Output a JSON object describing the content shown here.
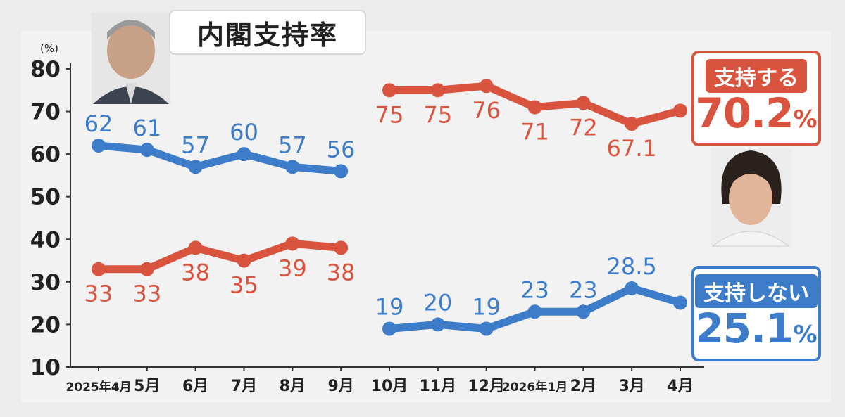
{
  "title": "内閣支持率",
  "chart_data": {
    "type": "line",
    "unit_label": "(%)",
    "ylim": [
      10,
      80
    ],
    "yticks": [
      10,
      20,
      30,
      40,
      50,
      60,
      70,
      80
    ],
    "categories": [
      {
        "main": "2025年4月"
      },
      {
        "main": "5月"
      },
      {
        "main": "6月"
      },
      {
        "main": "7月"
      },
      {
        "main": "8月"
      },
      {
        "main": "9月"
      },
      {
        "main": "10月"
      },
      {
        "main": "11月"
      },
      {
        "main": "12月"
      },
      {
        "main": "2026年1月"
      },
      {
        "main": "2月"
      },
      {
        "main": "3月"
      },
      {
        "main": "4月"
      }
    ],
    "series": [
      {
        "name": "支持する",
        "color": "#d9543f",
        "segment": "early",
        "values": [
          33,
          33,
          38,
          35,
          39,
          38,
          null,
          null,
          null,
          null,
          null,
          null,
          null
        ],
        "labels": [
          "33",
          "33",
          "38",
          "35",
          "39",
          "38"
        ]
      },
      {
        "name": "支持しない",
        "color": "#3c7cc9",
        "segment": "early",
        "values": [
          62,
          61,
          57,
          60,
          57,
          56,
          null,
          null,
          null,
          null,
          null,
          null,
          null
        ],
        "labels": [
          "62",
          "61",
          "57",
          "60",
          "57",
          "56"
        ]
      },
      {
        "name": "支持する",
        "color": "#d9543f",
        "segment": "late",
        "values": [
          null,
          null,
          null,
          null,
          null,
          null,
          75,
          75,
          76,
          71,
          72,
          67.1,
          70.2
        ],
        "labels": [
          "75",
          "75",
          "76",
          "71",
          "72",
          "67.1"
        ]
      },
      {
        "name": "支持しない",
        "color": "#3c7cc9",
        "segment": "late",
        "values": [
          null,
          null,
          null,
          null,
          null,
          null,
          19,
          20,
          19,
          23,
          23,
          28.5,
          25.1
        ],
        "labels": [
          "19",
          "20",
          "19",
          "23",
          "23",
          "28.5"
        ]
      }
    ]
  },
  "callouts": {
    "support": {
      "label": "支持する",
      "value": "70.2",
      "pct": "%"
    },
    "nonsupport": {
      "label": "支持しない",
      "value": "25.1",
      "pct": "%"
    }
  },
  "icons": {
    "left_photo": "person-photo-icon",
    "right_photo": "person-photo-icon"
  }
}
